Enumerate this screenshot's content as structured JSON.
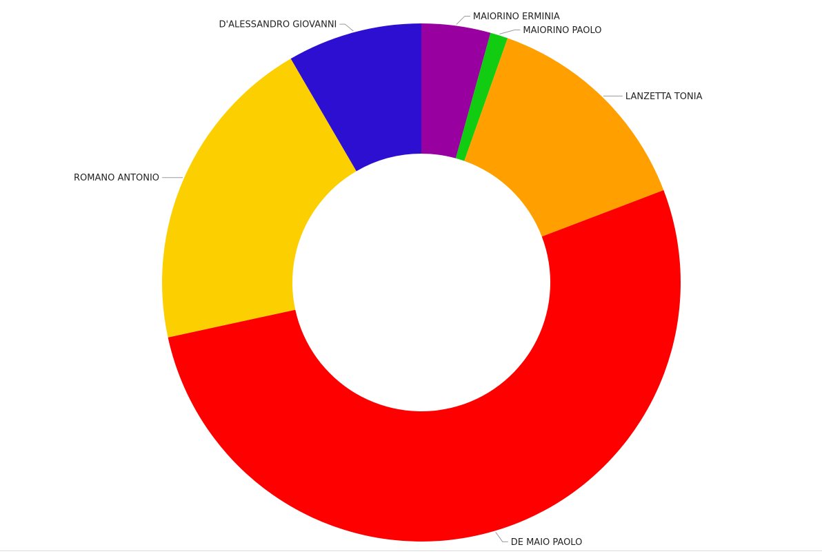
{
  "chart_data": {
    "type": "pie",
    "donut": true,
    "start_angle_deg": 0,
    "direction": "clockwise",
    "slices": [
      {
        "label": "MAIORINO ERMINIA",
        "value": 4.3,
        "color": "#9900a0"
      },
      {
        "label": "MAIORINO PAOLO",
        "value": 1.1,
        "color": "#11cc11"
      },
      {
        "label": "LANZETTA TONIA",
        "value": 13.8,
        "color": "#ffa000"
      },
      {
        "label": "DE MAIO PAOLO",
        "value": 52.4,
        "color": "#ff0000"
      },
      {
        "label": "ROMANO ANTONIO",
        "value": 20.0,
        "color": "#fcd000"
      },
      {
        "label": "D'ALESSANDRO GIOVANNI",
        "value": 8.4,
        "color": "#2d0fd2"
      }
    ],
    "legend": "none",
    "labels": "outside with leader lines"
  }
}
